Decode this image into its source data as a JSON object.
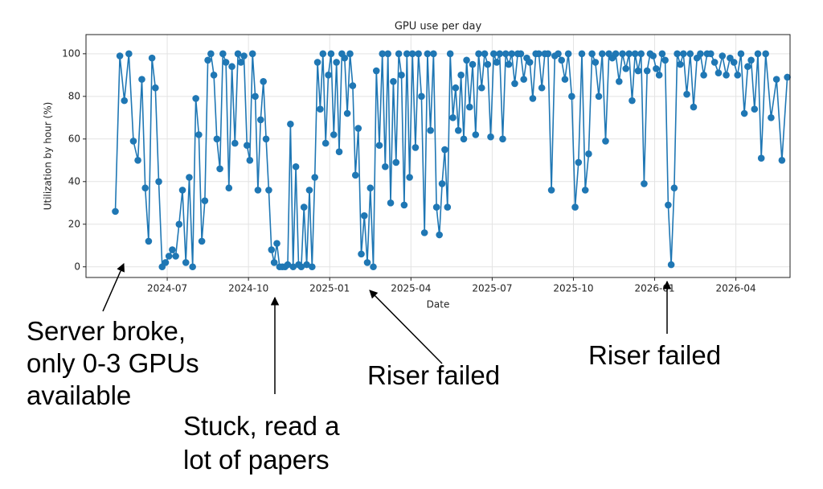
{
  "chart_data": {
    "type": "line",
    "title": "GPU use per day",
    "x_label": "Date",
    "y_label": "Utilization by hour (%)",
    "color": "#1f77b4",
    "grid": true,
    "xlim": [
      "2024-04",
      "2026-06"
    ],
    "xticks": [
      "2024-07",
      "2024-10",
      "2025-01",
      "2025-04",
      "2025-07",
      "2025-10",
      "2026-01",
      "2026-04"
    ],
    "ylim": [
      -5,
      109
    ],
    "yticks": [
      0,
      20,
      40,
      60,
      80,
      100
    ],
    "x": [
      "2024-05",
      "2024-05",
      "2024-05",
      "2024-05",
      "2024-05",
      "2024-05",
      "2024-06",
      "2024-06",
      "2024-06",
      "2024-06",
      "2024-06",
      "2024-06",
      "2024-06",
      "2024-06",
      "2024-07",
      "2024-07",
      "2024-07",
      "2024-07",
      "2024-07",
      "2024-07",
      "2024-07",
      "2024-07",
      "2024-08",
      "2024-08",
      "2024-08",
      "2024-08",
      "2024-08",
      "2024-08",
      "2024-08",
      "2024-08",
      "2024-08",
      "2024-09",
      "2024-09",
      "2024-09",
      "2024-09",
      "2024-09",
      "2024-09",
      "2024-09",
      "2024-09",
      "2024-09",
      "2024-10",
      "2024-10",
      "2024-10",
      "2024-10",
      "2024-10",
      "2024-10",
      "2024-10",
      "2024-10",
      "2024-10",
      "2024-10",
      "2024-11",
      "2024-11",
      "2024-11",
      "2024-11",
      "2024-11",
      "2024-11",
      "2024-11",
      "2024-11",
      "2024-11",
      "2024-11",
      "2024-12",
      "2024-12",
      "2024-12",
      "2024-12",
      "2024-12",
      "2024-12",
      "2024-12",
      "2024-12",
      "2024-12",
      "2024-12",
      "2025-01",
      "2025-01",
      "2025-01",
      "2025-01",
      "2025-01",
      "2025-01",
      "2025-01",
      "2025-01",
      "2025-01",
      "2025-01",
      "2025-02",
      "2025-02",
      "2025-02",
      "2025-02",
      "2025-02",
      "2025-02",
      "2025-02",
      "2025-02",
      "2025-02",
      "2025-03",
      "2025-03",
      "2025-03",
      "2025-03",
      "2025-03",
      "2025-03",
      "2025-03",
      "2025-03",
      "2025-03",
      "2025-03",
      "2025-04",
      "2025-04",
      "2025-04",
      "2025-04",
      "2025-04",
      "2025-04",
      "2025-04",
      "2025-04",
      "2025-04",
      "2025-05",
      "2025-05",
      "2025-05",
      "2025-05",
      "2025-05",
      "2025-05",
      "2025-05",
      "2025-05",
      "2025-05",
      "2025-05",
      "2025-06",
      "2025-06",
      "2025-06",
      "2025-06",
      "2025-06",
      "2025-06",
      "2025-06",
      "2025-06",
      "2025-06",
      "2025-07",
      "2025-07",
      "2025-07",
      "2025-07",
      "2025-07",
      "2025-07",
      "2025-07",
      "2025-07",
      "2025-07",
      "2025-08",
      "2025-08",
      "2025-08",
      "2025-08",
      "2025-08",
      "2025-08",
      "2025-08",
      "2025-08",
      "2025-08",
      "2025-09",
      "2025-09",
      "2025-09",
      "2025-09",
      "2025-09",
      "2025-09",
      "2025-09",
      "2025-09",
      "2025-10",
      "2025-10",
      "2025-10",
      "2025-10",
      "2025-10",
      "2025-10",
      "2025-10",
      "2025-10",
      "2025-11",
      "2025-11",
      "2025-11",
      "2025-11",
      "2025-11",
      "2025-11",
      "2025-11",
      "2025-11",
      "2025-12",
      "2025-12",
      "2025-12",
      "2025-12",
      "2025-12",
      "2025-12",
      "2025-12",
      "2025-12",
      "2025-12",
      "2026-01",
      "2026-01",
      "2026-01",
      "2026-01",
      "2026-01",
      "2026-01",
      "2026-01",
      "2026-01",
      "2026-01",
      "2026-02",
      "2026-02",
      "2026-02",
      "2026-02",
      "2026-02",
      "2026-02",
      "2026-02",
      "2026-02",
      "2026-03",
      "2026-03",
      "2026-03",
      "2026-03",
      "2026-03",
      "2026-03",
      "2026-03",
      "2026-04",
      "2026-04",
      "2026-04",
      "2026-04",
      "2026-04",
      "2026-04",
      "2026-04",
      "2026-04",
      "2026-05",
      "2026-05",
      "2026-05",
      "2026-05",
      "2026-05"
    ],
    "values": [
      26,
      99,
      78,
      100,
      59,
      50,
      88,
      37,
      12,
      98,
      84,
      40,
      0,
      2,
      5,
      8,
      5,
      20,
      36,
      2,
      42,
      0,
      79,
      62,
      12,
      31,
      97,
      100,
      90,
      60,
      46,
      100,
      96,
      37,
      94,
      58,
      100,
      96,
      99,
      57,
      50,
      100,
      80,
      36,
      69,
      87,
      60,
      36,
      8,
      2,
      11,
      0,
      0,
      0,
      1,
      67,
      0,
      47,
      1,
      0,
      28,
      1,
      36,
      0,
      42,
      96,
      74,
      100,
      58,
      90,
      100,
      62,
      96,
      54,
      100,
      98,
      72,
      100,
      85,
      43,
      65,
      6,
      24,
      2,
      37,
      0,
      92,
      57,
      100,
      47,
      100,
      30,
      87,
      49,
      100,
      90,
      29,
      100,
      42,
      100,
      56,
      100,
      80,
      16,
      100,
      64,
      100,
      28,
      15,
      39,
      55,
      28,
      100,
      70,
      84,
      64,
      90,
      60,
      97,
      75,
      95,
      62,
      100,
      84,
      100,
      95,
      61,
      100,
      96,
      100,
      60,
      100,
      95,
      100,
      86,
      100,
      100,
      88,
      98,
      96,
      79,
      100,
      100,
      84,
      100,
      100,
      36,
      99,
      100,
      97,
      88,
      100,
      80,
      28,
      49,
      100,
      36,
      53,
      100,
      96,
      80,
      100,
      59,
      100,
      98,
      100,
      87,
      100,
      93,
      100,
      78,
      100,
      92,
      100,
      39,
      92,
      100,
      99,
      93,
      90,
      100,
      97,
      29,
      1,
      37,
      100,
      95,
      100,
      81,
      100,
      75,
      98,
      100,
      90,
      100,
      100,
      96,
      91,
      99,
      90,
      98,
      96,
      90,
      100,
      72,
      94,
      97,
      74,
      100,
      51,
      100,
      70,
      88,
      50,
      89
    ],
    "annotations": [
      {
        "text": [
          "Server broke,",
          "only 0-3 GPUs",
          "available"
        ]
      },
      {
        "text": [
          "Stuck, read a",
          "lot of papers"
        ]
      },
      {
        "text": [
          "Riser failed"
        ]
      },
      {
        "text": [
          "Riser failed"
        ]
      }
    ]
  }
}
